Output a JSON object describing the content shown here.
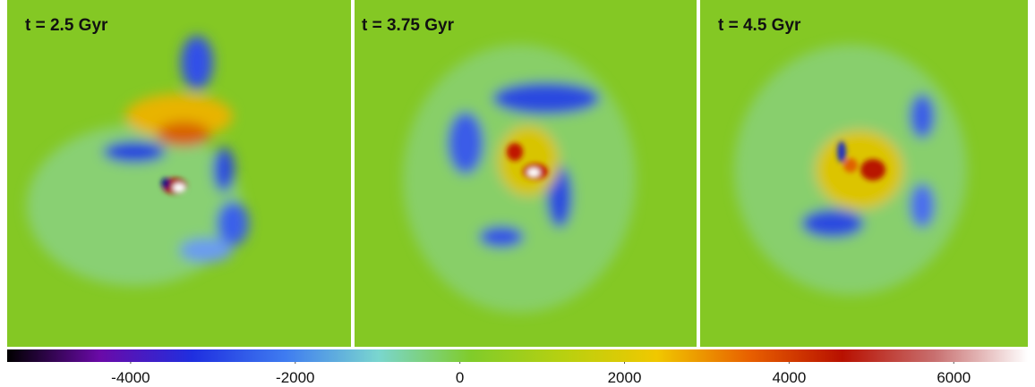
{
  "chart_data": {
    "type": "image-panels",
    "panels": [
      {
        "title": "t = 2.5 Gyr"
      },
      {
        "title": "t = 3.75 Gyr"
      },
      {
        "title": "t = 4.5 Gyr"
      }
    ],
    "colorbar": {
      "clim": [
        -5500,
        6900
      ],
      "ticks": [
        -4000,
        -2000,
        0,
        2000,
        4000,
        6000
      ],
      "colormap": [
        "#000000",
        "#6a0aa8",
        "#1f2fe0",
        "#3f7cf0",
        "#7ad6cf",
        "#80cc2a",
        "#b8d010",
        "#f0c800",
        "#e86000",
        "#b81000",
        "#c87070",
        "#ffffff"
      ]
    }
  }
}
